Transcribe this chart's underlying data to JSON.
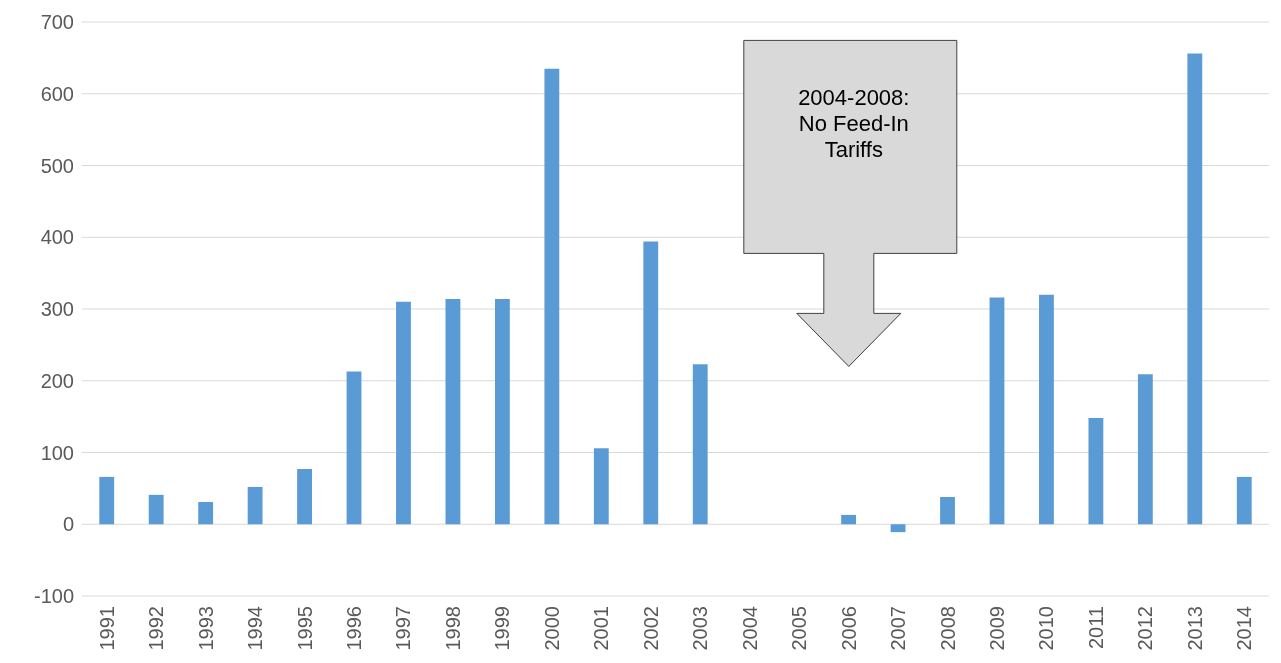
{
  "chart_data": {
    "type": "bar",
    "categories": [
      "1991",
      "1992",
      "1993",
      "1994",
      "1995",
      "1996",
      "1997",
      "1998",
      "1999",
      "2000",
      "2001",
      "2002",
      "2003",
      "2004",
      "2005",
      "2006",
      "2007",
      "2008",
      "2009",
      "2010",
      "2011",
      "2012",
      "2013",
      "2014"
    ],
    "values": [
      66,
      41,
      31,
      52,
      77,
      213,
      310,
      314,
      314,
      635,
      106,
      394,
      223,
      0,
      0,
      13,
      -11,
      38,
      316,
      320,
      148,
      209,
      656,
      66
    ],
    "color": "#5b9bd5",
    "ylim": [
      -100,
      700
    ],
    "yticks": [
      -100,
      0,
      100,
      200,
      300,
      400,
      500,
      600,
      700
    ],
    "grid": "y",
    "annotations": [
      "2004-2008: No Feed-In Tariffs"
    ]
  }
}
